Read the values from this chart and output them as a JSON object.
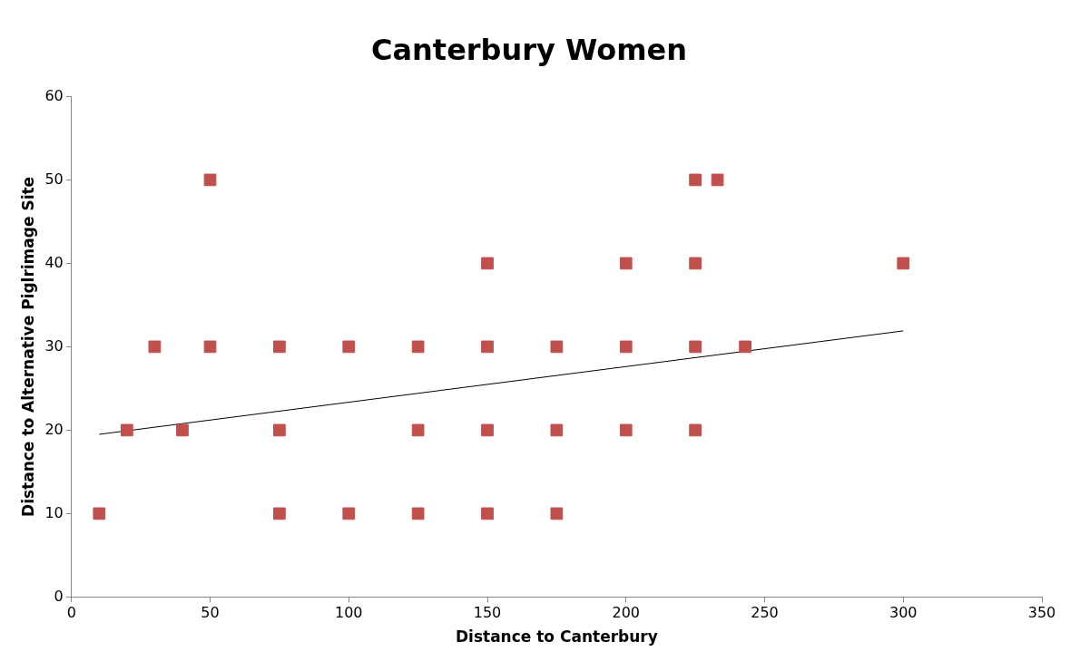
{
  "chart_data": {
    "type": "scatter",
    "title": "Canterbury Women",
    "xlabel": "Distance to Canterbury",
    "ylabel": "Distance to Alternative Piglrimage Site",
    "xlim": [
      0,
      350
    ],
    "xticks": [
      0,
      50,
      100,
      150,
      200,
      250,
      300,
      350
    ],
    "ylim": [
      0,
      60
    ],
    "yticks": [
      0,
      10,
      20,
      30,
      40,
      50,
      60
    ],
    "grid": false,
    "legend": false,
    "marker": "square",
    "series": [
      {
        "color": "#c0504d",
        "x": [
          10,
          20,
          30,
          40,
          50,
          50,
          75,
          75,
          75,
          100,
          100,
          125,
          125,
          125,
          150,
          150,
          150,
          150,
          175,
          175,
          175,
          200,
          200,
          200,
          225,
          225,
          225,
          225,
          233,
          243,
          300
        ],
        "values": [
          10,
          20,
          30,
          20,
          50,
          30,
          30,
          20,
          10,
          30,
          10,
          30,
          20,
          10,
          40,
          30,
          20,
          10,
          30,
          20,
          10,
          40,
          30,
          20,
          50,
          40,
          30,
          20,
          50,
          30,
          40
        ]
      },
      {
        "type": "line",
        "color": "#000000",
        "marker": "none",
        "x": [
          10,
          300
        ],
        "values": [
          19.5,
          31.9
        ]
      }
    ]
  }
}
